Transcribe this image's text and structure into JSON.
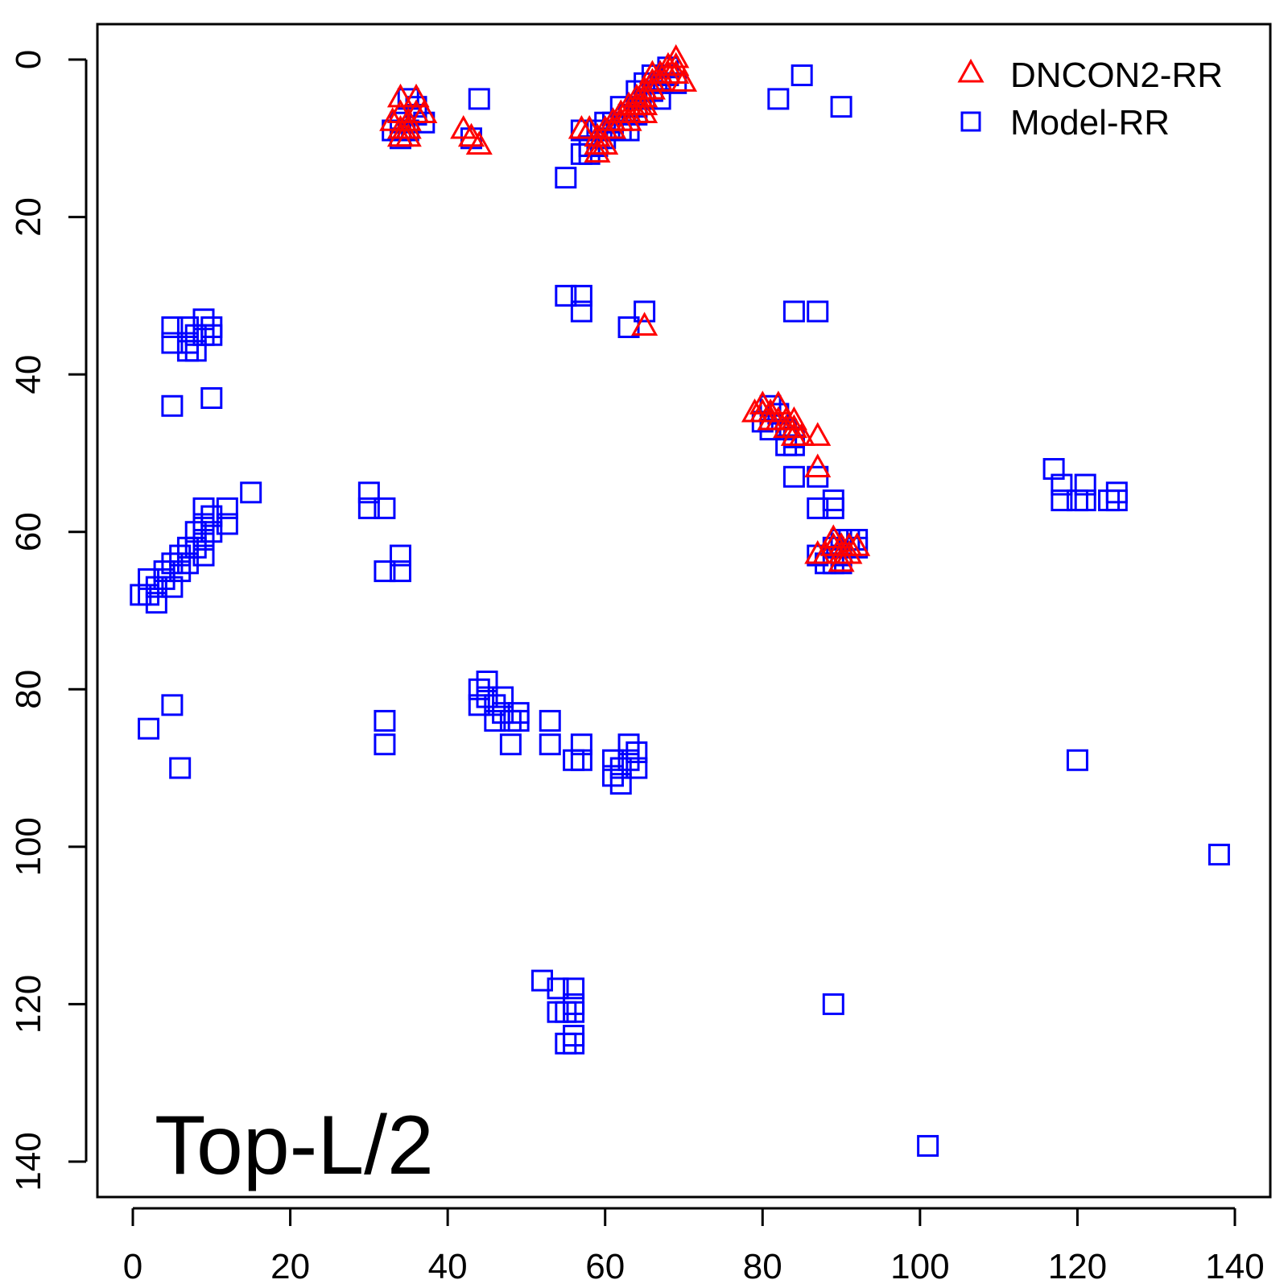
{
  "chart_data": {
    "type": "scatter",
    "title": "",
    "xlabel": "",
    "ylabel": "",
    "xlim": [
      -4.5,
      144.5
    ],
    "ylim": [
      -4.5,
      144.5
    ],
    "y_axis_reversed": true,
    "x_ticks": [
      "0",
      "20",
      "40",
      "60",
      "80",
      "100",
      "120",
      "140"
    ],
    "y_ticks": [
      "0",
      "20",
      "40",
      "60",
      "80",
      "100",
      "120",
      "140"
    ],
    "grid": false,
    "legend_position": "top-right",
    "annotation": "Top-L/2",
    "series": [
      {
        "name": "DNCON2-RR",
        "marker": "triangle",
        "color": "#ff0000",
        "points": [
          [
            34,
            5
          ],
          [
            36,
            5
          ],
          [
            33,
            8
          ],
          [
            34,
            7
          ],
          [
            35,
            8
          ],
          [
            34,
            9
          ],
          [
            35,
            9
          ],
          [
            36,
            7
          ],
          [
            37,
            7
          ],
          [
            34,
            10
          ],
          [
            35,
            10
          ],
          [
            42,
            9
          ],
          [
            43,
            10
          ],
          [
            44,
            11
          ],
          [
            57,
            9
          ],
          [
            58,
            9
          ],
          [
            59,
            10
          ],
          [
            59,
            11
          ],
          [
            59,
            12
          ],
          [
            60,
            11
          ],
          [
            60,
            9
          ],
          [
            61,
            9
          ],
          [
            61,
            8
          ],
          [
            62,
            8
          ],
          [
            62,
            7
          ],
          [
            63,
            7
          ],
          [
            63,
            8
          ],
          [
            63,
            6
          ],
          [
            64,
            6
          ],
          [
            64,
            5
          ],
          [
            64,
            7
          ],
          [
            65,
            5
          ],
          [
            65,
            6
          ],
          [
            65,
            4
          ],
          [
            65,
            7
          ],
          [
            66,
            4
          ],
          [
            66,
            3
          ],
          [
            66,
            2
          ],
          [
            67,
            3
          ],
          [
            67,
            2
          ],
          [
            68,
            2
          ],
          [
            68,
            1
          ],
          [
            69,
            1
          ],
          [
            69,
            2
          ],
          [
            69,
            0
          ],
          [
            70,
            3
          ],
          [
            65,
            34
          ],
          [
            79,
            45
          ],
          [
            80,
            44
          ],
          [
            80,
            45
          ],
          [
            81,
            45
          ],
          [
            81,
            46
          ],
          [
            82,
            44
          ],
          [
            82,
            46
          ],
          [
            83,
            46
          ],
          [
            83,
            47
          ],
          [
            84,
            47
          ],
          [
            84,
            46
          ],
          [
            84,
            48
          ],
          [
            85,
            48
          ],
          [
            87,
            48
          ],
          [
            87,
            52
          ],
          [
            87,
            63
          ],
          [
            88,
            63
          ],
          [
            89,
            61
          ],
          [
            89,
            62
          ],
          [
            90,
            62
          ],
          [
            90,
            63
          ],
          [
            90,
            64
          ],
          [
            91,
            62
          ],
          [
            91,
            63
          ],
          [
            92,
            62
          ]
        ]
      },
      {
        "name": "Model-RR",
        "marker": "square",
        "color": "#0000ff",
        "points": [
          [
            33,
            9
          ],
          [
            34,
            8
          ],
          [
            34,
            10
          ],
          [
            35,
            9
          ],
          [
            35,
            5
          ],
          [
            36,
            6
          ],
          [
            36,
            7
          ],
          [
            37,
            8
          ],
          [
            44,
            5
          ],
          [
            43,
            10
          ],
          [
            55,
            15
          ],
          [
            57,
            9
          ],
          [
            57,
            12
          ],
          [
            58,
            12
          ],
          [
            58,
            11
          ],
          [
            59,
            11
          ],
          [
            59,
            9
          ],
          [
            60,
            10
          ],
          [
            60,
            8
          ],
          [
            61,
            9
          ],
          [
            61,
            8
          ],
          [
            62,
            9
          ],
          [
            62,
            6
          ],
          [
            63,
            7
          ],
          [
            63,
            9
          ],
          [
            64,
            6
          ],
          [
            64,
            4
          ],
          [
            64,
            7
          ],
          [
            65,
            5
          ],
          [
            65,
            3
          ],
          [
            66,
            4
          ],
          [
            66,
            2
          ],
          [
            67,
            3
          ],
          [
            67,
            5
          ],
          [
            68,
            1
          ],
          [
            68,
            2
          ],
          [
            69,
            3
          ],
          [
            82,
            5
          ],
          [
            85,
            2
          ],
          [
            90,
            6
          ],
          [
            5,
            34
          ],
          [
            5,
            36
          ],
          [
            7,
            34
          ],
          [
            7,
            36
          ],
          [
            7,
            37
          ],
          [
            8,
            35
          ],
          [
            8,
            37
          ],
          [
            9,
            33
          ],
          [
            9,
            35
          ],
          [
            10,
            34
          ],
          [
            10,
            35
          ],
          [
            5,
            44
          ],
          [
            10,
            43
          ],
          [
            55,
            30
          ],
          [
            57,
            30
          ],
          [
            57,
            32
          ],
          [
            65,
            32
          ],
          [
            63,
            34
          ],
          [
            84,
            32
          ],
          [
            87,
            32
          ],
          [
            80,
            46
          ],
          [
            81,
            44
          ],
          [
            81,
            47
          ],
          [
            82,
            45
          ],
          [
            83,
            47
          ],
          [
            83,
            49
          ],
          [
            84,
            48
          ],
          [
            84,
            49
          ],
          [
            84,
            53
          ],
          [
            87,
            57
          ],
          [
            87,
            53
          ],
          [
            89,
            56
          ],
          [
            89,
            57
          ],
          [
            1,
            68
          ],
          [
            2,
            66
          ],
          [
            2,
            68
          ],
          [
            3,
            67
          ],
          [
            3,
            69
          ],
          [
            4,
            65
          ],
          [
            4,
            66
          ],
          [
            5,
            64
          ],
          [
            5,
            67
          ],
          [
            6,
            63
          ],
          [
            6,
            65
          ],
          [
            7,
            62
          ],
          [
            7,
            64
          ],
          [
            8,
            60
          ],
          [
            8,
            62
          ],
          [
            9,
            57
          ],
          [
            9,
            59
          ],
          [
            9,
            61
          ],
          [
            9,
            63
          ],
          [
            10,
            58
          ],
          [
            10,
            60
          ],
          [
            12,
            57
          ],
          [
            12,
            59
          ],
          [
            15,
            55
          ],
          [
            30,
            55
          ],
          [
            30,
            57
          ],
          [
            32,
            57
          ],
          [
            32,
            65
          ],
          [
            34,
            63
          ],
          [
            34,
            65
          ],
          [
            87,
            63
          ],
          [
            88,
            64
          ],
          [
            89,
            62
          ],
          [
            89,
            64
          ],
          [
            90,
            61
          ],
          [
            90,
            63
          ],
          [
            91,
            61
          ],
          [
            92,
            62
          ],
          [
            92,
            61
          ],
          [
            90,
            64
          ],
          [
            117,
            52
          ],
          [
            118,
            54
          ],
          [
            118,
            56
          ],
          [
            120,
            56
          ],
          [
            121,
            54
          ],
          [
            121,
            56
          ],
          [
            124,
            56
          ],
          [
            125,
            55
          ],
          [
            125,
            56
          ],
          [
            2,
            85
          ],
          [
            5,
            82
          ],
          [
            6,
            90
          ],
          [
            32,
            84
          ],
          [
            32,
            87
          ],
          [
            44,
            80
          ],
          [
            44,
            82
          ],
          [
            45,
            79
          ],
          [
            45,
            81
          ],
          [
            46,
            82
          ],
          [
            46,
            84
          ],
          [
            47,
            81
          ],
          [
            47,
            83
          ],
          [
            48,
            84
          ],
          [
            48,
            87
          ],
          [
            49,
            83
          ],
          [
            49,
            84
          ],
          [
            53,
            84
          ],
          [
            53,
            87
          ],
          [
            56,
            89
          ],
          [
            57,
            87
          ],
          [
            57,
            89
          ],
          [
            61,
            89
          ],
          [
            61,
            91
          ],
          [
            62,
            90
          ],
          [
            62,
            92
          ],
          [
            63,
            87
          ],
          [
            63,
            89
          ],
          [
            64,
            88
          ],
          [
            64,
            90
          ],
          [
            120,
            89
          ],
          [
            138,
            101
          ],
          [
            52,
            117
          ],
          [
            54,
            118
          ],
          [
            54,
            121
          ],
          [
            55,
            121
          ],
          [
            55,
            125
          ],
          [
            56,
            118
          ],
          [
            56,
            120
          ],
          [
            56,
            121
          ],
          [
            56,
            124
          ],
          [
            56,
            125
          ],
          [
            89,
            120
          ],
          [
            101,
            138
          ]
        ]
      }
    ]
  }
}
